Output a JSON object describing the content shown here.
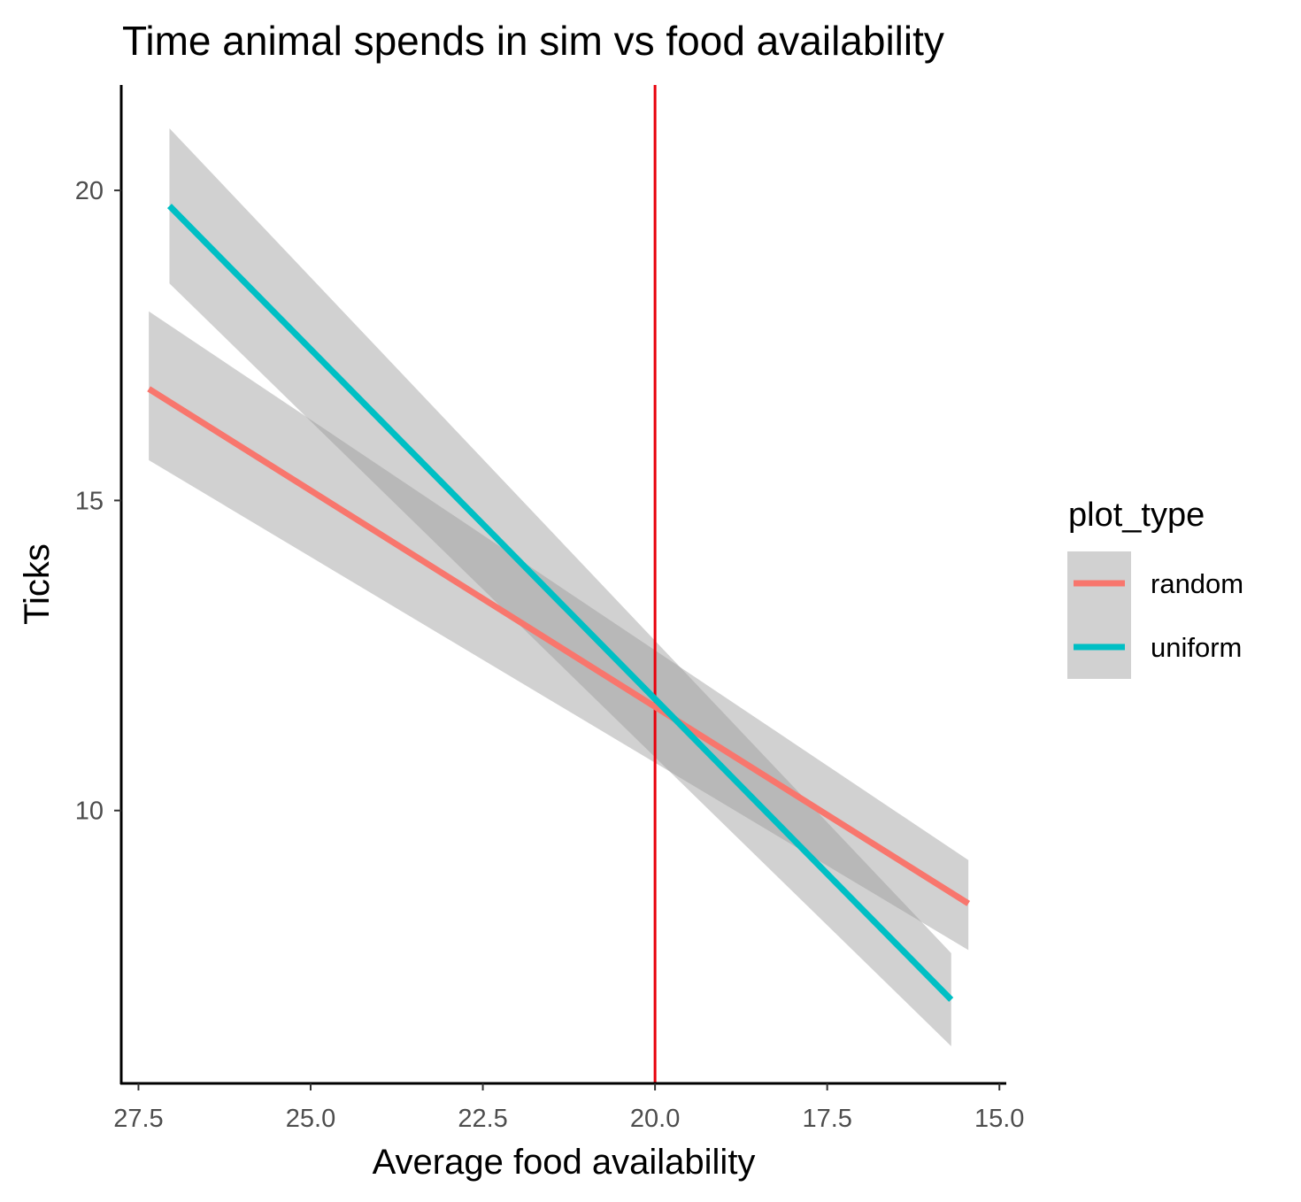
{
  "chart_data": {
    "type": "line",
    "title": "Time animal spends in sim vs food availability",
    "xlabel": "Average food availability",
    "ylabel": "Ticks",
    "x_reversed": true,
    "xlim": [
      27.75,
      14.9
    ],
    "ylim": [
      5.6,
      21.7
    ],
    "x_ticks": [
      "27.5",
      "25.0",
      "22.5",
      "20.0",
      "17.5",
      "15.0"
    ],
    "x_tick_values": [
      27.5,
      25.0,
      22.5,
      20.0,
      17.5,
      15.0
    ],
    "y_ticks": [
      "10",
      "15",
      "20"
    ],
    "y_tick_values": [
      10,
      15,
      20
    ],
    "grid": false,
    "legend": {
      "title": "plot_type",
      "position": "right"
    },
    "vline": {
      "x": 20.0,
      "color": "#e8000b"
    },
    "series": [
      {
        "name": "random",
        "color": "#f8766d",
        "x": [
          27.35,
          15.45
        ],
        "y": [
          16.8,
          8.5
        ],
        "ci_lower": [
          15.65,
          7.75
        ],
        "ci_upper": [
          18.05,
          9.2
        ]
      },
      {
        "name": "uniform",
        "color": "#00bfc4",
        "x": [
          27.05,
          15.7
        ],
        "y": [
          19.75,
          6.95
        ],
        "ci_lower": [
          18.5,
          6.2
        ],
        "ci_upper": [
          21.0,
          7.7
        ]
      }
    ],
    "band_color": "#999999"
  }
}
